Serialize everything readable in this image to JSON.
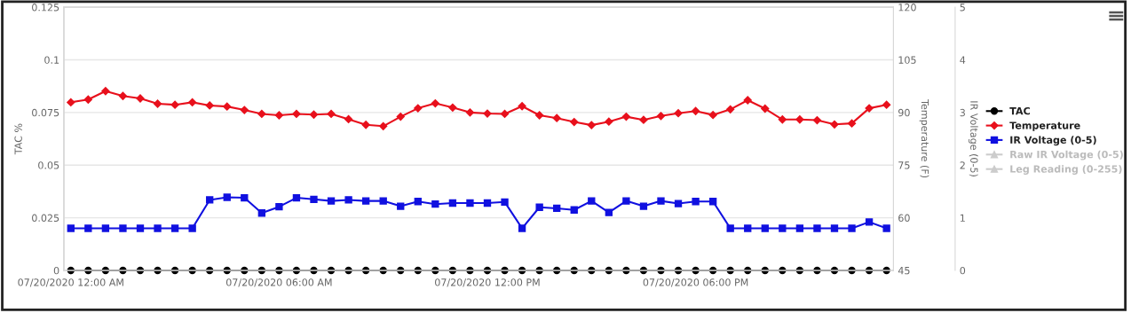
{
  "chart_data": {
    "type": "line",
    "xlabel": null,
    "ylabel": "TAC %",
    "y2label": "Temperature (F)",
    "y3label": "IR Voltage (0-5)",
    "x": [
      "2020-07-20T00:00",
      "2020-07-20T00:30",
      "2020-07-20T01:00",
      "2020-07-20T01:30",
      "2020-07-20T02:00",
      "2020-07-20T02:30",
      "2020-07-20T03:00",
      "2020-07-20T03:30",
      "2020-07-20T04:00",
      "2020-07-20T04:30",
      "2020-07-20T05:00",
      "2020-07-20T05:30",
      "2020-07-20T06:00",
      "2020-07-20T06:30",
      "2020-07-20T07:00",
      "2020-07-20T07:30",
      "2020-07-20T08:00",
      "2020-07-20T08:30",
      "2020-07-20T09:00",
      "2020-07-20T09:30",
      "2020-07-20T10:00",
      "2020-07-20T10:30",
      "2020-07-20T11:00",
      "2020-07-20T11:30",
      "2020-07-20T12:00",
      "2020-07-20T12:30",
      "2020-07-20T13:00",
      "2020-07-20T13:30",
      "2020-07-20T14:00",
      "2020-07-20T14:30",
      "2020-07-20T15:00",
      "2020-07-20T15:30",
      "2020-07-20T16:00",
      "2020-07-20T16:30",
      "2020-07-20T17:00",
      "2020-07-20T17:30",
      "2020-07-20T18:00",
      "2020-07-20T18:30",
      "2020-07-20T19:00",
      "2020-07-20T19:30",
      "2020-07-20T20:00",
      "2020-07-20T20:30",
      "2020-07-20T21:00",
      "2020-07-20T21:30",
      "2020-07-20T22:00",
      "2020-07-20T22:30",
      "2020-07-20T23:00",
      "2020-07-20T23:30"
    ],
    "xlim": [
      "2020-07-19T23:48",
      "2020-07-20T23:42"
    ],
    "xticks": [
      {
        "value": "2020-07-20T00:00",
        "label": "07/20/2020 12:00 AM"
      },
      {
        "value": "2020-07-20T06:00",
        "label": "07/20/2020 06:00 AM"
      },
      {
        "value": "2020-07-20T12:00",
        "label": "07/20/2020 12:00 PM"
      },
      {
        "value": "2020-07-20T18:00",
        "label": "07/20/2020 06:00 PM"
      }
    ],
    "ylim": [
      0,
      0.125
    ],
    "yticks": [
      0,
      0.025,
      0.05,
      0.075,
      0.1,
      0.125
    ],
    "y2lim": [
      45,
      120
    ],
    "y2ticks": [
      45,
      60,
      75,
      90,
      105,
      120
    ],
    "y3lim": [
      0,
      5
    ],
    "y3ticks": [
      0,
      1,
      2,
      3,
      4,
      5
    ],
    "grid": "y",
    "legend": "right",
    "series": [
      {
        "name": "TAC",
        "color": "#000000",
        "marker": "circle",
        "values": [
          0,
          0,
          0,
          0,
          0,
          0,
          0,
          0,
          0,
          0,
          0,
          0,
          0,
          0,
          0,
          0,
          0,
          0,
          0,
          0,
          0,
          0,
          0,
          0,
          0,
          0,
          0,
          0,
          0,
          0,
          0,
          0,
          0,
          0,
          0,
          0,
          0,
          0,
          0,
          0,
          0,
          0,
          0,
          0,
          0,
          0,
          0,
          0
        ]
      },
      {
        "name": "Temperature",
        "color": "#e8101c",
        "marker": "diamond",
        "axis": "y2",
        "values": [
          92.9,
          93.7,
          96.1,
          94.7,
          94.0,
          92.5,
          92.2,
          92.9,
          92.0,
          91.7,
          90.7,
          89.6,
          89.2,
          89.6,
          89.4,
          89.6,
          88.1,
          86.5,
          86.1,
          88.8,
          91.2,
          92.6,
          91.4,
          90.0,
          89.7,
          89.6,
          91.8,
          89.2,
          88.4,
          87.3,
          86.4,
          87.4,
          88.8,
          87.9,
          89.0,
          89.8,
          90.4,
          89.3,
          90.9,
          93.5,
          91.1,
          88.0,
          88.0,
          87.8,
          86.6,
          86.9,
          91.2,
          92.2
        ]
      },
      {
        "name": "IR Voltage (0-5)",
        "color": "#1010e0",
        "marker": "square",
        "axis": "y3",
        "values": [
          0.8,
          0.8,
          0.8,
          0.8,
          0.8,
          0.8,
          0.8,
          0.8,
          1.34,
          1.39,
          1.38,
          1.09,
          1.21,
          1.38,
          1.35,
          1.32,
          1.34,
          1.32,
          1.32,
          1.22,
          1.31,
          1.26,
          1.28,
          1.28,
          1.28,
          1.3,
          0.8,
          1.2,
          1.18,
          1.15,
          1.32,
          1.1,
          1.32,
          1.22,
          1.32,
          1.27,
          1.31,
          1.31,
          0.8,
          0.8,
          0.8,
          0.8,
          0.8,
          0.8,
          0.8,
          0.8,
          0.92,
          0.8
        ]
      },
      {
        "name": "Raw IR Voltage (0-5)",
        "color": "#cccccc",
        "marker": "triangle",
        "values": [
          null,
          null,
          null,
          null,
          null,
          null,
          null,
          null,
          null,
          null,
          null,
          null,
          null,
          null,
          null,
          null,
          null,
          null,
          null,
          null,
          null,
          null,
          null,
          null,
          null,
          null,
          null,
          null,
          null,
          null,
          null,
          null,
          null,
          null,
          null,
          null,
          null,
          null,
          null,
          null,
          null,
          null,
          null,
          null,
          null,
          null,
          null,
          null
        ]
      },
      {
        "name": "Leg Reading (0-255)",
        "color": "#cccccc",
        "marker": "triangle",
        "values": [
          null,
          null,
          null,
          null,
          null,
          null,
          null,
          null,
          null,
          null,
          null,
          null,
          null,
          null,
          null,
          null,
          null,
          null,
          null,
          null,
          null,
          null,
          null,
          null,
          null,
          null,
          null,
          null,
          null,
          null,
          null,
          null,
          null,
          null,
          null,
          null,
          null,
          null,
          null,
          null,
          null,
          null,
          null,
          null,
          null,
          null,
          null,
          null
        ]
      }
    ]
  }
}
